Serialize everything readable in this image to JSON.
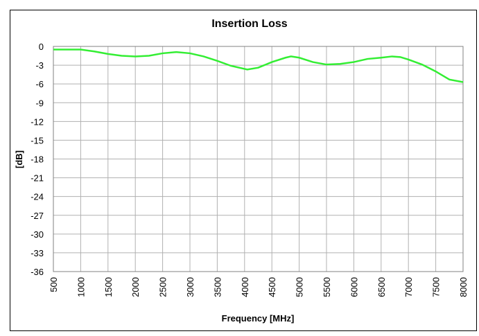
{
  "chart_data": {
    "type": "line",
    "title": "Insertion Loss",
    "xlabel": "Frequency [MHz]",
    "ylabel": "[dB]",
    "x": [
      500,
      1000,
      1250,
      1500,
      1750,
      2000,
      2250,
      2500,
      2750,
      3000,
      3250,
      3500,
      3750,
      4050,
      4250,
      4500,
      4750,
      4850,
      5000,
      5250,
      5500,
      5750,
      6000,
      6250,
      6500,
      6700,
      6850,
      7000,
      7250,
      7500,
      7750,
      8000
    ],
    "series": [
      {
        "name": "Insertion Loss",
        "color": "#33ee33",
        "values": [
          -0.5,
          -0.5,
          -0.8,
          -1.2,
          -1.5,
          -1.6,
          -1.5,
          -1.1,
          -0.9,
          -1.1,
          -1.6,
          -2.3,
          -3.1,
          -3.7,
          -3.4,
          -2.5,
          -1.8,
          -1.6,
          -1.8,
          -2.5,
          -2.9,
          -2.8,
          -2.5,
          -2.0,
          -1.8,
          -1.6,
          -1.7,
          -2.1,
          -2.9,
          -4.0,
          -5.3,
          -5.7
        ]
      }
    ],
    "xlim": [
      500,
      8000
    ],
    "xticks": [
      500,
      1000,
      1500,
      2000,
      2500,
      3000,
      3500,
      4000,
      4500,
      5000,
      5500,
      6000,
      6500,
      7000,
      7500,
      8000
    ],
    "ylim": [
      -36,
      0
    ],
    "yticks": [
      0,
      -3,
      -6,
      -9,
      -12,
      -15,
      -18,
      -21,
      -24,
      -27,
      -30,
      -33,
      -36
    ],
    "grid": true
  }
}
